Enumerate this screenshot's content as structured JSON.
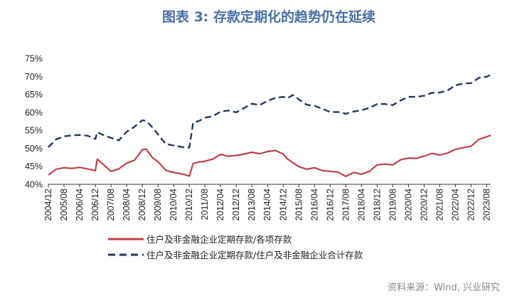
{
  "figure": {
    "title": "图表 3:   存款定期化的趋势仍在延续",
    "source": "资料来源：Wind, 兴业研究"
  },
  "colors": {
    "series1": "#c0404a",
    "series2": "#27395e",
    "title": "#4a6fa5"
  },
  "chart_data": {
    "type": "line",
    "ylim": [
      40,
      75
    ],
    "y_tick_labels": [
      "40%",
      "45%",
      "50%",
      "55%",
      "60%",
      "65%",
      "70%",
      "75%"
    ],
    "x_tick_labels": [
      "2004/12",
      "2005/08",
      "2006/04",
      "2006/12",
      "2007/08",
      "2008/04",
      "2008/12",
      "2009/08",
      "2010/04",
      "2010/12",
      "2011/08",
      "2012/04",
      "2012/12",
      "2013/08",
      "2014/04",
      "2014/12",
      "2015/08",
      "2016/04",
      "2016/12",
      "2017/08",
      "2018/04",
      "2018/12",
      "2019/08",
      "2020/04",
      "2020/12",
      "2021/08",
      "2022/04",
      "2022/12",
      "2023/08"
    ],
    "x_months_start": "2004/12",
    "x_months_end": "2023/10",
    "grid": false,
    "legend_position": "bottom",
    "series": [
      {
        "name": "住户及非金融企业定期存款/各项存款",
        "style": "solid",
        "points": [
          [
            "2004/12",
            42.6
          ],
          [
            "2005/04",
            44.2
          ],
          [
            "2005/08",
            44.6
          ],
          [
            "2005/12",
            44.4
          ],
          [
            "2006/04",
            44.7
          ],
          [
            "2006/08",
            44.3
          ],
          [
            "2006/12",
            43.8
          ],
          [
            "2007/01",
            47.0
          ],
          [
            "2007/04",
            45.5
          ],
          [
            "2007/08",
            43.6
          ],
          [
            "2007/12",
            44.3
          ],
          [
            "2008/04",
            45.9
          ],
          [
            "2008/08",
            46.7
          ],
          [
            "2008/12",
            49.6
          ],
          [
            "2009/02",
            49.8
          ],
          [
            "2009/05",
            47.5
          ],
          [
            "2009/08",
            46.3
          ],
          [
            "2009/12",
            43.9
          ],
          [
            "2010/04",
            43.3
          ],
          [
            "2010/09",
            42.8
          ],
          [
            "2010/12",
            42.3
          ],
          [
            "2011/02",
            45.8
          ],
          [
            "2011/05",
            46.2
          ],
          [
            "2011/08",
            46.4
          ],
          [
            "2011/12",
            47.0
          ],
          [
            "2012/04",
            48.3
          ],
          [
            "2012/08",
            47.8
          ],
          [
            "2012/12",
            48.0
          ],
          [
            "2013/04",
            48.4
          ],
          [
            "2013/08",
            48.9
          ],
          [
            "2013/12",
            48.5
          ],
          [
            "2014/04",
            49.1
          ],
          [
            "2014/08",
            49.4
          ],
          [
            "2014/12",
            48.4
          ],
          [
            "2015/02",
            47.1
          ],
          [
            "2015/05",
            46.0
          ],
          [
            "2015/08",
            44.9
          ],
          [
            "2015/12",
            44.2
          ],
          [
            "2016/04",
            44.6
          ],
          [
            "2016/08",
            43.8
          ],
          [
            "2016/12",
            43.6
          ],
          [
            "2017/04",
            43.4
          ],
          [
            "2017/08",
            42.2
          ],
          [
            "2017/12",
            43.3
          ],
          [
            "2018/04",
            42.8
          ],
          [
            "2018/08",
            43.6
          ],
          [
            "2018/12",
            45.4
          ],
          [
            "2019/04",
            45.6
          ],
          [
            "2019/08",
            45.4
          ],
          [
            "2019/12",
            46.8
          ],
          [
            "2020/04",
            47.3
          ],
          [
            "2020/08",
            47.2
          ],
          [
            "2020/12",
            47.8
          ],
          [
            "2021/04",
            48.6
          ],
          [
            "2021/08",
            48.1
          ],
          [
            "2021/12",
            48.7
          ],
          [
            "2022/04",
            49.7
          ],
          [
            "2022/08",
            50.2
          ],
          [
            "2022/12",
            50.6
          ],
          [
            "2023/04",
            52.5
          ],
          [
            "2023/08",
            53.2
          ],
          [
            "2023/10",
            53.6
          ]
        ]
      },
      {
        "name": "住户及非金融企业定期存款/住户及非金融企业合计存款",
        "style": "dashed",
        "points": [
          [
            "2004/12",
            50.3
          ],
          [
            "2005/04",
            52.5
          ],
          [
            "2005/08",
            53.3
          ],
          [
            "2005/12",
            53.6
          ],
          [
            "2006/04",
            53.7
          ],
          [
            "2006/08",
            53.5
          ],
          [
            "2006/12",
            52.6
          ],
          [
            "2007/01",
            54.5
          ],
          [
            "2007/04",
            53.7
          ],
          [
            "2007/08",
            52.9
          ],
          [
            "2007/12",
            52.2
          ],
          [
            "2008/04",
            54.6
          ],
          [
            "2008/08",
            56.0
          ],
          [
            "2008/12",
            57.8
          ],
          [
            "2009/02",
            57.6
          ],
          [
            "2009/05",
            55.9
          ],
          [
            "2009/08",
            53.9
          ],
          [
            "2009/12",
            51.2
          ],
          [
            "2010/04",
            50.8
          ],
          [
            "2010/09",
            50.3
          ],
          [
            "2010/12",
            50.2
          ],
          [
            "2011/02",
            57.2
          ],
          [
            "2011/05",
            57.6
          ],
          [
            "2011/08",
            58.5
          ],
          [
            "2011/12",
            58.9
          ],
          [
            "2012/04",
            60.2
          ],
          [
            "2012/08",
            60.5
          ],
          [
            "2012/12",
            60.0
          ],
          [
            "2013/04",
            61.2
          ],
          [
            "2013/08",
            62.4
          ],
          [
            "2013/12",
            62.0
          ],
          [
            "2014/04",
            63.2
          ],
          [
            "2014/08",
            64.0
          ],
          [
            "2014/12",
            64.3
          ],
          [
            "2015/02",
            63.9
          ],
          [
            "2015/05",
            64.8
          ],
          [
            "2015/08",
            63.6
          ],
          [
            "2015/12",
            62.1
          ],
          [
            "2016/04",
            61.8
          ],
          [
            "2016/08",
            61.0
          ],
          [
            "2016/12",
            60.1
          ],
          [
            "2017/04",
            60.1
          ],
          [
            "2017/08",
            59.6
          ],
          [
            "2017/12",
            60.2
          ],
          [
            "2018/04",
            60.6
          ],
          [
            "2018/08",
            61.2
          ],
          [
            "2018/12",
            62.3
          ],
          [
            "2019/04",
            62.3
          ],
          [
            "2019/08",
            62.0
          ],
          [
            "2019/12",
            63.3
          ],
          [
            "2020/04",
            64.3
          ],
          [
            "2020/08",
            64.3
          ],
          [
            "2020/12",
            64.6
          ],
          [
            "2021/04",
            65.4
          ],
          [
            "2021/08",
            65.5
          ],
          [
            "2021/12",
            66.1
          ],
          [
            "2022/04",
            67.5
          ],
          [
            "2022/08",
            68.0
          ],
          [
            "2022/12",
            68.1
          ],
          [
            "2023/04",
            69.6
          ],
          [
            "2023/08",
            69.9
          ],
          [
            "2023/10",
            70.4
          ]
        ]
      }
    ]
  }
}
